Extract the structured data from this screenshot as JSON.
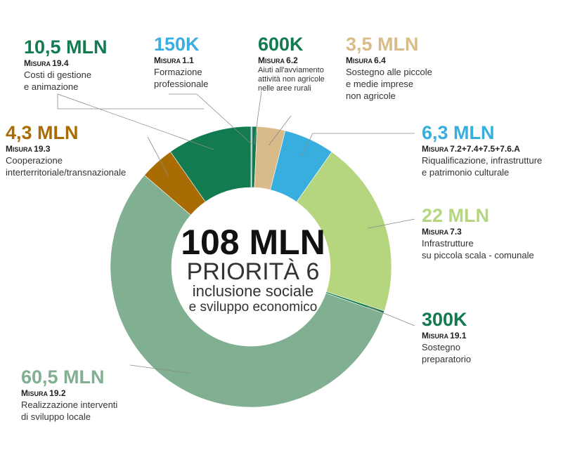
{
  "chart_data": {
    "type": "pie",
    "donut": true,
    "total_label": "108 MLN",
    "center": {
      "line1": "PRIORITÀ 6",
      "line2": "inclusione sociale",
      "line3": "e sviluppo economico"
    },
    "measure_word": "Misura",
    "slices": [
      {
        "value_label": "150K",
        "value": 0.15,
        "measure": "1.1",
        "desc": [
          "Formazione",
          "professionale"
        ],
        "color": "#3AAEDF"
      },
      {
        "value_label": "600K",
        "value": 0.6,
        "measure": "6.2",
        "desc": [
          "Aiuti all'avviamento",
          "attività non agricole",
          "nelle aree rurali"
        ],
        "color": "#137B50"
      },
      {
        "value_label": "3,5 MLN",
        "value": 3.5,
        "measure": "6.4",
        "desc": [
          "Sostegno alle piccole",
          "e medie imprese",
          "non agricole"
        ],
        "color": "#D9BB8A"
      },
      {
        "value_label": "6,3 MLN",
        "value": 6.3,
        "measure": "7.2+7.4+7.5+7.6.A",
        "desc": [
          "Riqualificazione, infrastrutture",
          "e patrimonio culturale"
        ],
        "color": "#38AEDE"
      },
      {
        "value_label": "22 MLN",
        "value": 22,
        "measure": "7.3",
        "desc": [
          "Infrastrutture",
          "su piccola scala - comunale"
        ],
        "color": "#B5D67E"
      },
      {
        "value_label": "300K",
        "value": 0.3,
        "measure": "19.1",
        "desc": [
          "Sostegno",
          "preparatorio"
        ],
        "color": "#127A4F"
      },
      {
        "value_label": "60,5 MLN",
        "value": 60.5,
        "measure": "19.2",
        "desc": [
          "Realizzazione interventi",
          "di sviluppo locale"
        ],
        "color": "#80AF92"
      },
      {
        "value_label": "4,3 MLN",
        "value": 4.3,
        "measure": "19.3",
        "desc": [
          "Cooperazione",
          "interterritoriale/transnazionale"
        ],
        "color": "#A96C05"
      },
      {
        "value_label": "10,5 MLN",
        "value": 10.5,
        "measure": "19.4",
        "desc": [
          "Costi di gestione",
          "e animazione"
        ],
        "color": "#137B50"
      }
    ]
  }
}
